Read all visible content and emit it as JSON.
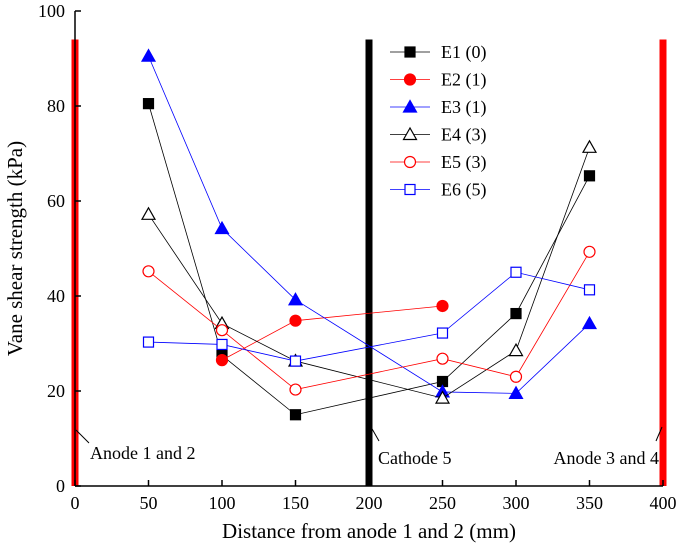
{
  "chart_data": {
    "type": "line",
    "title": "",
    "xlabel": "Distance from anode 1 and 2 (mm)",
    "ylabel": "Vane shear strength (kPa)",
    "xlim": [
      0,
      400
    ],
    "ylim": [
      0,
      100
    ],
    "xticks": [
      0,
      50,
      100,
      150,
      200,
      250,
      300,
      350,
      400
    ],
    "yticks": [
      0,
      20,
      40,
      60,
      80,
      100
    ],
    "grid": false,
    "legend_position": "top-right",
    "series": [
      {
        "name": "E1 (0)",
        "marker": "square",
        "filled": true,
        "color": "#000000",
        "x": [
          50,
          100,
          150,
          250,
          300,
          350
        ],
        "y": [
          80.5,
          27.5,
          15.0,
          22.0,
          36.3,
          65.3
        ]
      },
      {
        "name": "E2 (1)",
        "marker": "circle",
        "filled": true,
        "color": "#ff0000",
        "x": [
          100,
          150,
          250
        ],
        "y": [
          26.5,
          34.8,
          37.9
        ]
      },
      {
        "name": "E3 (1)",
        "marker": "triangle",
        "filled": true,
        "color": "#0000ff",
        "x": [
          50,
          100,
          150,
          250,
          300,
          350
        ],
        "y": [
          90.5,
          54.2,
          39.2,
          19.8,
          19.5,
          34.2
        ]
      },
      {
        "name": "E4 (3)",
        "marker": "triangle",
        "filled": false,
        "color": "#000000",
        "x": [
          50,
          100,
          150,
          250,
          300,
          350
        ],
        "y": [
          57.2,
          34.2,
          26.3,
          18.5,
          28.5,
          71.3
        ]
      },
      {
        "name": "E5 (3)",
        "marker": "circle",
        "filled": false,
        "color": "#ff0000",
        "x": [
          50,
          100,
          150,
          250,
          300,
          350
        ],
        "y": [
          45.2,
          32.8,
          20.3,
          26.8,
          23.0,
          49.3
        ]
      },
      {
        "name": "E6 (5)",
        "marker": "square",
        "filled": false,
        "color": "#0000ff",
        "x": [
          50,
          100,
          150,
          250,
          300,
          350
        ],
        "y": [
          30.3,
          29.8,
          26.3,
          32.2,
          45.0,
          41.3
        ]
      }
    ],
    "electrodes": [
      {
        "label": "Anode 1 and 2",
        "x": 0,
        "color": "#ff0000",
        "top_y": 94
      },
      {
        "label": "Cathode 5",
        "x": 200,
        "color": "#000000",
        "top_y": 94
      },
      {
        "label": "Anode 3 and 4",
        "x": 400,
        "color": "#ff0000",
        "top_y": 94
      }
    ]
  }
}
